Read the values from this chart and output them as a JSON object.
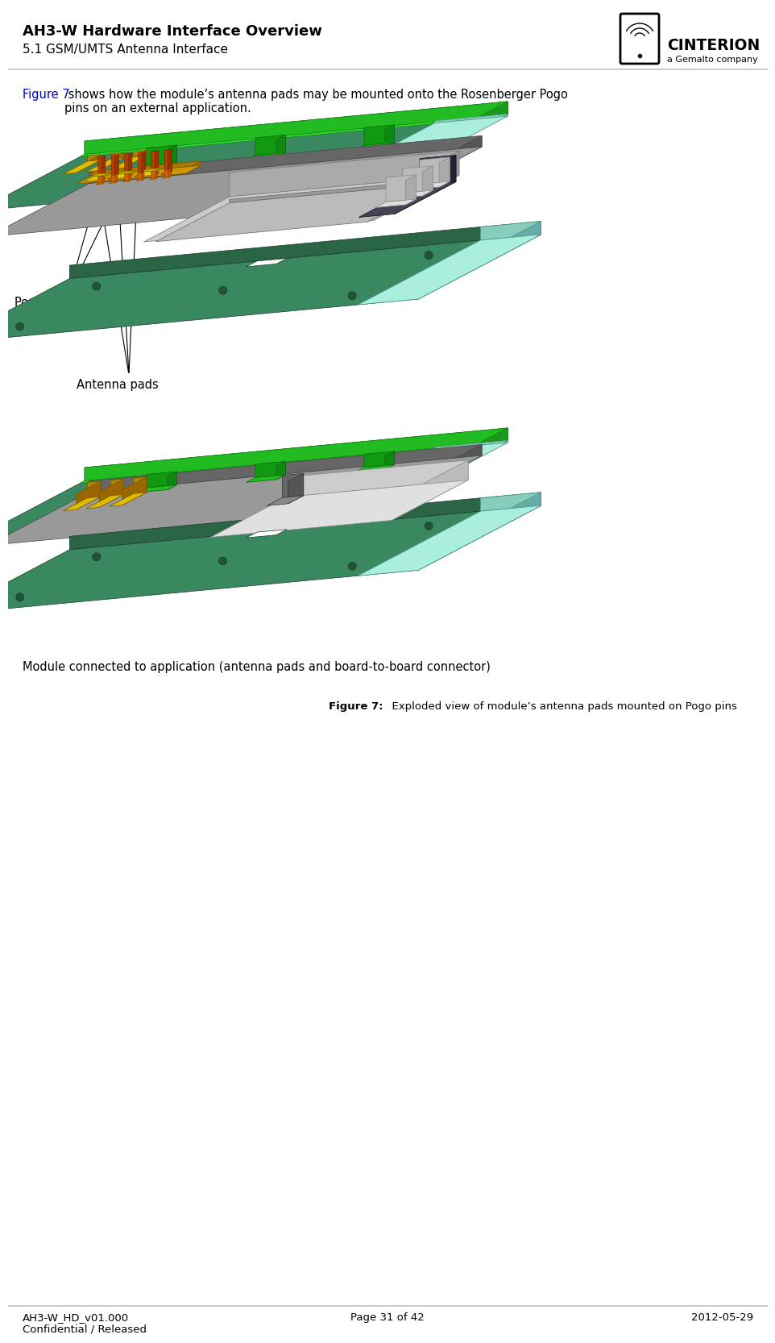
{
  "title_bold": "AH3-W Hardware Interface Overview",
  "title_sub": "5.1 GSM/UMTS Antenna Interface",
  "header_line_color": "#cccccc",
  "footer_line_color": "#cccccc",
  "footer_left": "AH3-W_HD_v01.000\nConfidential / Released",
  "footer_center": "Page 31 of 42",
  "footer_right": "2012-05-29",
  "logo_text": "CINTERION",
  "logo_sub": "a Gemalto company",
  "body_text_blue": "Figure 7",
  "body_text_main": " shows how the module’s antenna pads may be mounted onto the Rosenberger Pogo\npins on an external application.",
  "label_pogo": "Pogo pins",
  "label_antenna": "Antenna pads",
  "label_module": "Module connected to application (antenna pads and board-to-board connector)",
  "figure_caption_bold": "Figure 7:",
  "figure_caption_rest": "  Exploded view of module’s antenna pads mounted on Pogo pins",
  "bg_color": "#ffffff",
  "title_fontsize": 13,
  "sub_fontsize": 11,
  "body_fontsize": 10.5,
  "footer_fontsize": 9.5,
  "figure_caption_fontsize": 9.5,
  "label_fontsize": 10.5,
  "green_top": "#4a9e78",
  "green_face": "#3a8860",
  "green_dark_side": "#2a5a3a",
  "green_bright": "#22dd22",
  "green_bright2": "#33ee33",
  "cyan_edge": "#aae8dd",
  "gray_mid": "#888898",
  "gray_face": "#aaaaaa",
  "gray_light": "#cccccc",
  "silver": "#c0c0c8",
  "orange_pin": "#cc6600",
  "orange_base": "#cc8800",
  "yellow_pad": "#ddbb00",
  "gold_base": "#b8960a",
  "dark_connector": "#555566",
  "white_conn": "#e8e8e8"
}
